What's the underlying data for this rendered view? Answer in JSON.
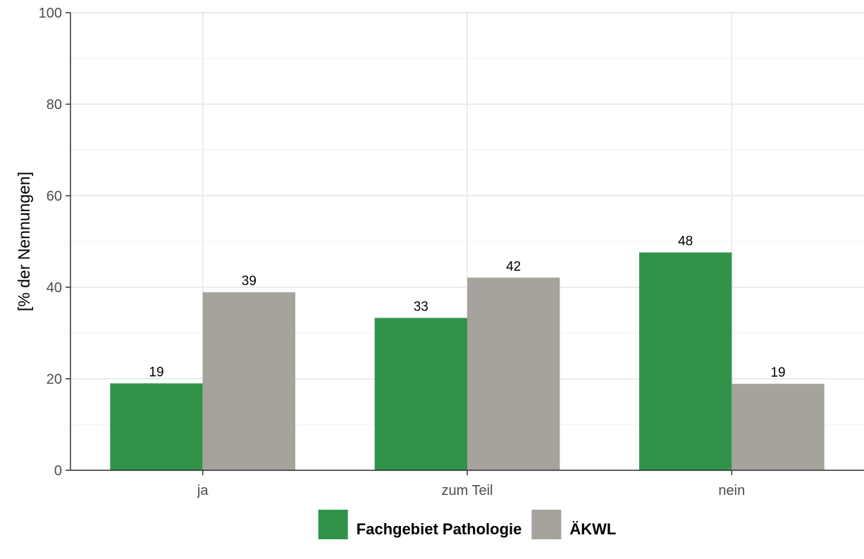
{
  "chart_data": {
    "type": "bar",
    "categories": [
      "ja",
      "zum Teil",
      "nein"
    ],
    "series": [
      {
        "name": "Fachgebiet Pathologie",
        "values": [
          19,
          33.3,
          47.6
        ],
        "labels": [
          "19",
          "33",
          "48"
        ],
        "color": "#31934a"
      },
      {
        "name": "ÄKWL",
        "values": [
          38.9,
          42.1,
          18.9
        ],
        "labels": [
          "39",
          "42",
          "19"
        ],
        "color": "#a6a39c"
      }
    ],
    "ylabel": "[% der Nennungen]",
    "xlabel": "",
    "ylim": [
      0,
      100
    ],
    "yticks": [
      0,
      20,
      40,
      60,
      80,
      100
    ],
    "grid": true,
    "legend_position": "bottom"
  }
}
